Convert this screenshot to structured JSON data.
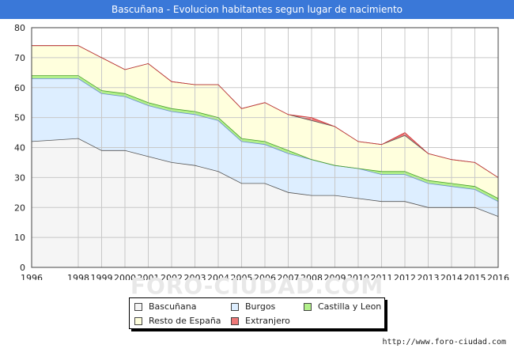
{
  "title": "Bascuñana - Evolucion habitantes segun lugar de nacimiento",
  "source": "http://www.foro-ciudad.com",
  "watermark": "FORO-CIUDAD.COM",
  "chart_data": {
    "type": "area",
    "stacked": true,
    "x": [
      1996,
      1998,
      1999,
      2000,
      2001,
      2002,
      2003,
      2004,
      2005,
      2006,
      2007,
      2008,
      2009,
      2010,
      2011,
      2012,
      2013,
      2014,
      2015,
      2016
    ],
    "ylim": [
      0,
      80
    ],
    "yticks": [
      0,
      10,
      20,
      30,
      40,
      50,
      60,
      70,
      80
    ],
    "grid": true,
    "legend_position": "bottom",
    "series": [
      {
        "name": "Bascuñana",
        "color": "#f5f5f5",
        "line": "#555555",
        "values": [
          42,
          43,
          39,
          39,
          37,
          35,
          34,
          32,
          28,
          28,
          25,
          24,
          24,
          23,
          22,
          22,
          20,
          20,
          20,
          17
        ]
      },
      {
        "name": "Burgos",
        "color": "#ddeeff",
        "line": "#6a8fcf",
        "values": [
          21,
          20,
          19,
          18,
          17,
          17,
          17,
          17,
          14,
          13,
          13,
          12,
          10,
          10,
          9,
          9,
          8,
          7,
          6,
          5
        ]
      },
      {
        "name": "Castilla y Leon",
        "color": "#b2f08a",
        "line": "#4aa02c",
        "values": [
          1,
          1,
          1,
          1,
          1,
          1,
          1,
          1,
          1,
          1,
          1,
          0,
          0,
          0,
          1,
          1,
          1,
          1,
          1,
          1
        ]
      },
      {
        "name": "Resto de España",
        "color": "#ffffdd",
        "line": "#555555",
        "values": [
          10,
          10,
          11,
          8,
          13,
          9,
          9,
          11,
          10,
          13,
          12,
          13,
          13,
          9,
          9,
          12,
          9,
          8,
          8,
          7
        ]
      },
      {
        "name": "Extranjero",
        "color": "#ee7777",
        "line": "#cc3333",
        "values": [
          0,
          0,
          0,
          0,
          0,
          0,
          0,
          0,
          0,
          0,
          0,
          1,
          0,
          0,
          0,
          1,
          0,
          0,
          0,
          0
        ]
      }
    ],
    "legend_order": [
      "Bascuñana",
      "Burgos",
      "Castilla y Leon",
      "Resto de España",
      "Extranjero"
    ]
  }
}
